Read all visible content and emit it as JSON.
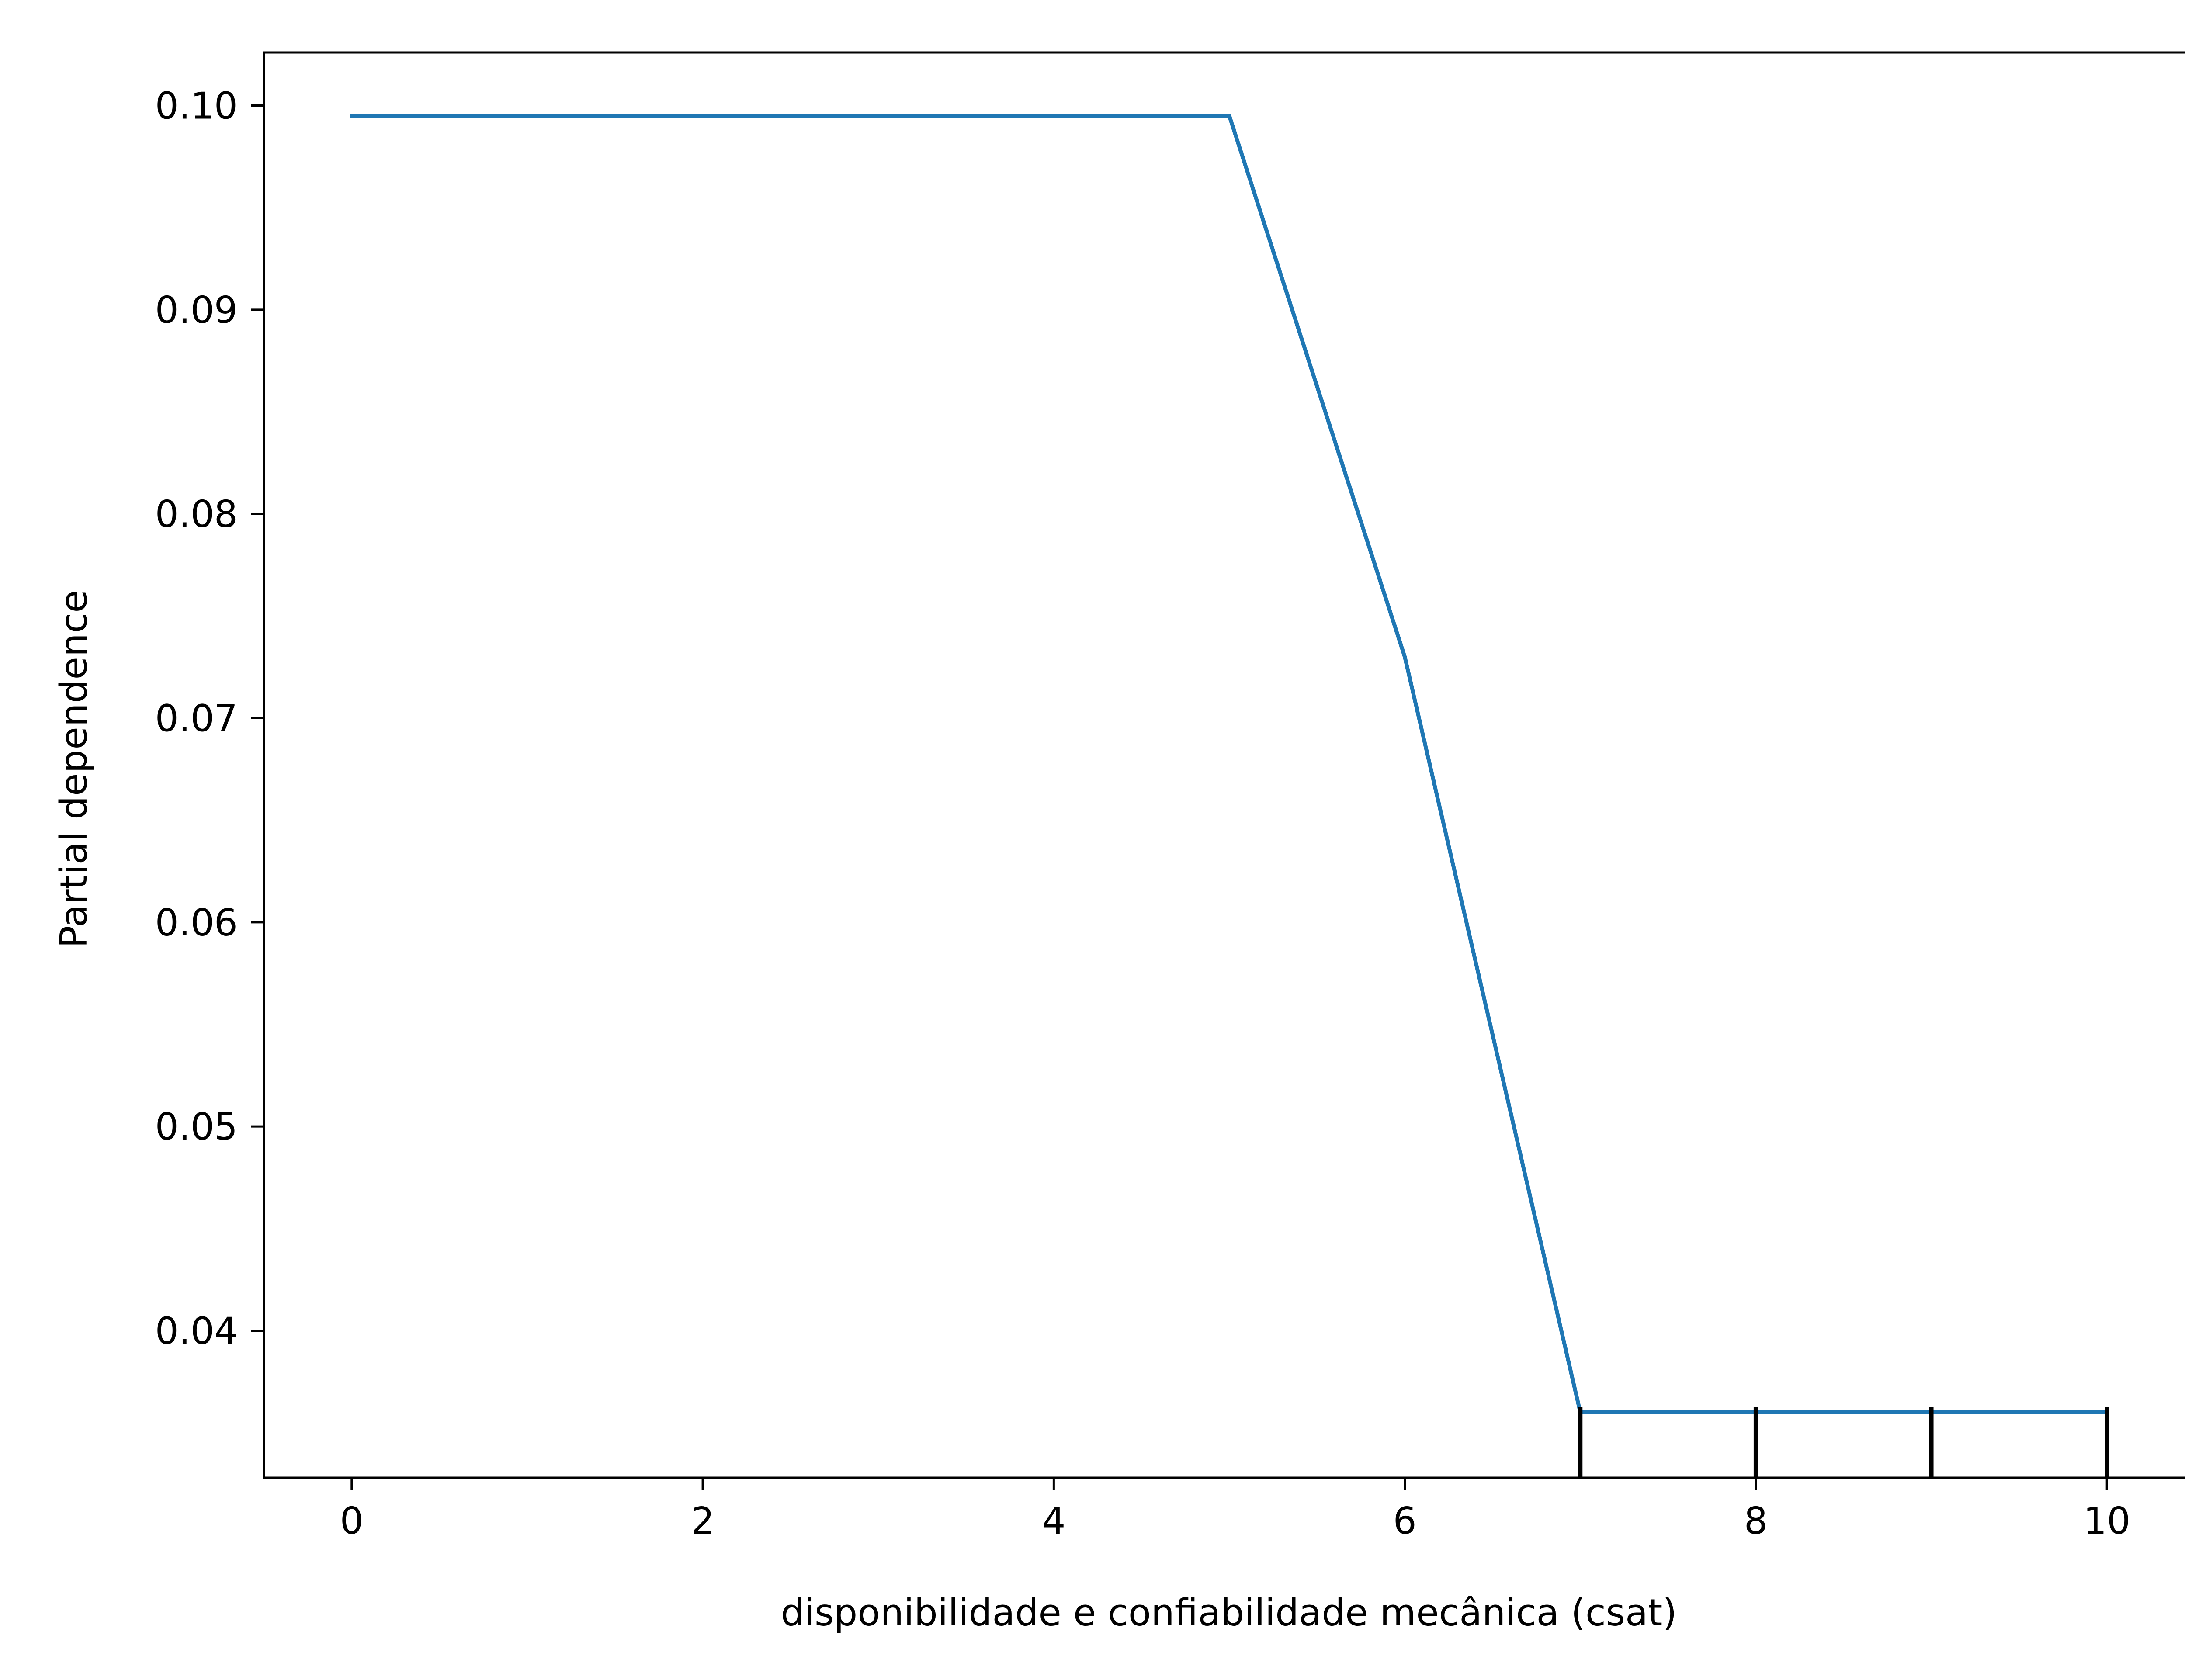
{
  "chart_data": {
    "type": "line",
    "title": "",
    "xlabel": "disponibilidade e confiabilidade mecânica  (csat)",
    "ylabel": "Partial dependence",
    "xlim": [
      -0.5,
      10.5
    ],
    "ylim": [
      0.0328,
      0.1026
    ],
    "xticks": [
      0,
      2,
      4,
      6,
      8,
      10
    ],
    "xtick_labels": [
      "0",
      "2",
      "4",
      "6",
      "8",
      "10"
    ],
    "yticks": [
      0.04,
      0.05,
      0.06,
      0.07,
      0.08,
      0.09,
      0.1
    ],
    "ytick_labels": [
      "0.04",
      "0.05",
      "0.06",
      "0.07",
      "0.08",
      "0.09",
      "0.10"
    ],
    "grid": false,
    "series": [
      {
        "color": "#1f77b4",
        "x": [
          0,
          1,
          2,
          3,
          4,
          5,
          6,
          7,
          8,
          9,
          10
        ],
        "y": [
          0.0995,
          0.0995,
          0.0995,
          0.0995,
          0.0995,
          0.0995,
          0.073,
          0.036,
          0.036,
          0.036,
          0.036
        ]
      }
    ],
    "rug": {
      "color": "#000000",
      "x": [
        7,
        8,
        9,
        10
      ]
    }
  }
}
